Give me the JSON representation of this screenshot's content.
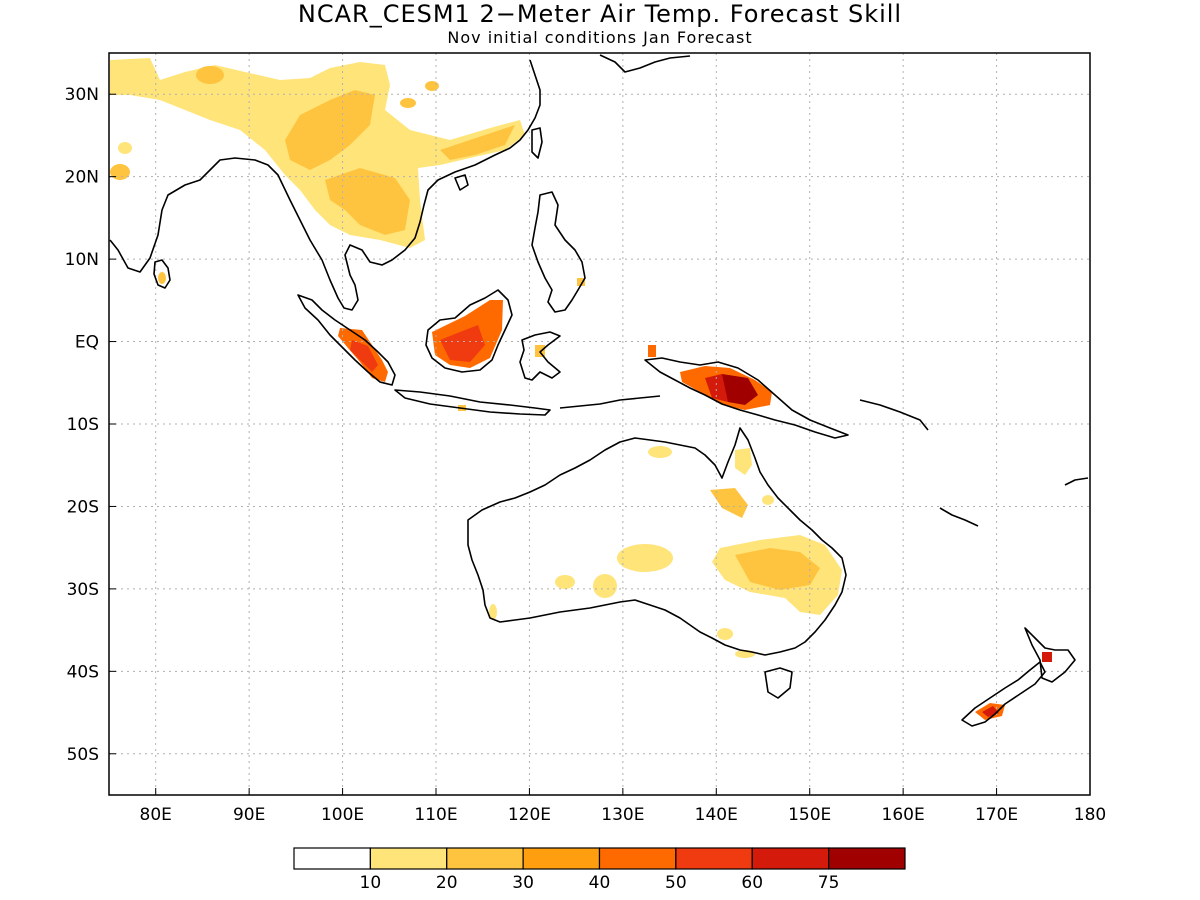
{
  "title": "NCAR_CESM1 2−Meter Air Temp. Forecast Skill",
  "subtitle": "Nov initial conditions  Jan Forecast",
  "map": {
    "lon_range": [
      75,
      180
    ],
    "lat_range": [
      -55,
      35
    ],
    "lat_ticks": [
      {
        "value": 30,
        "label": "30N"
      },
      {
        "value": 20,
        "label": "20N"
      },
      {
        "value": 10,
        "label": "10N"
      },
      {
        "value": 0,
        "label": "EQ"
      },
      {
        "value": -10,
        "label": "10S"
      },
      {
        "value": -20,
        "label": "20S"
      },
      {
        "value": -30,
        "label": "30S"
      },
      {
        "value": -40,
        "label": "40S"
      },
      {
        "value": -50,
        "label": "50S"
      }
    ],
    "lon_ticks": [
      {
        "value": 80,
        "label": "80E"
      },
      {
        "value": 90,
        "label": "90E"
      },
      {
        "value": 100,
        "label": "100E"
      },
      {
        "value": 110,
        "label": "110E"
      },
      {
        "value": 120,
        "label": "120E"
      },
      {
        "value": 130,
        "label": "130E"
      },
      {
        "value": 140,
        "label": "140E"
      },
      {
        "value": 150,
        "label": "150E"
      },
      {
        "value": 160,
        "label": "160E"
      },
      {
        "value": 170,
        "label": "170E"
      },
      {
        "value": 180,
        "label": "180"
      }
    ],
    "colorbar": {
      "colors": [
        "#ffffff",
        "#ffe47a",
        "#ffc43f",
        "#ff9f0f",
        "#ff6a00",
        "#f03a10",
        "#d41a0a",
        "#a00000"
      ],
      "labels": [
        "10",
        "20",
        "30",
        "40",
        "50",
        "60",
        "75"
      ]
    }
  }
}
